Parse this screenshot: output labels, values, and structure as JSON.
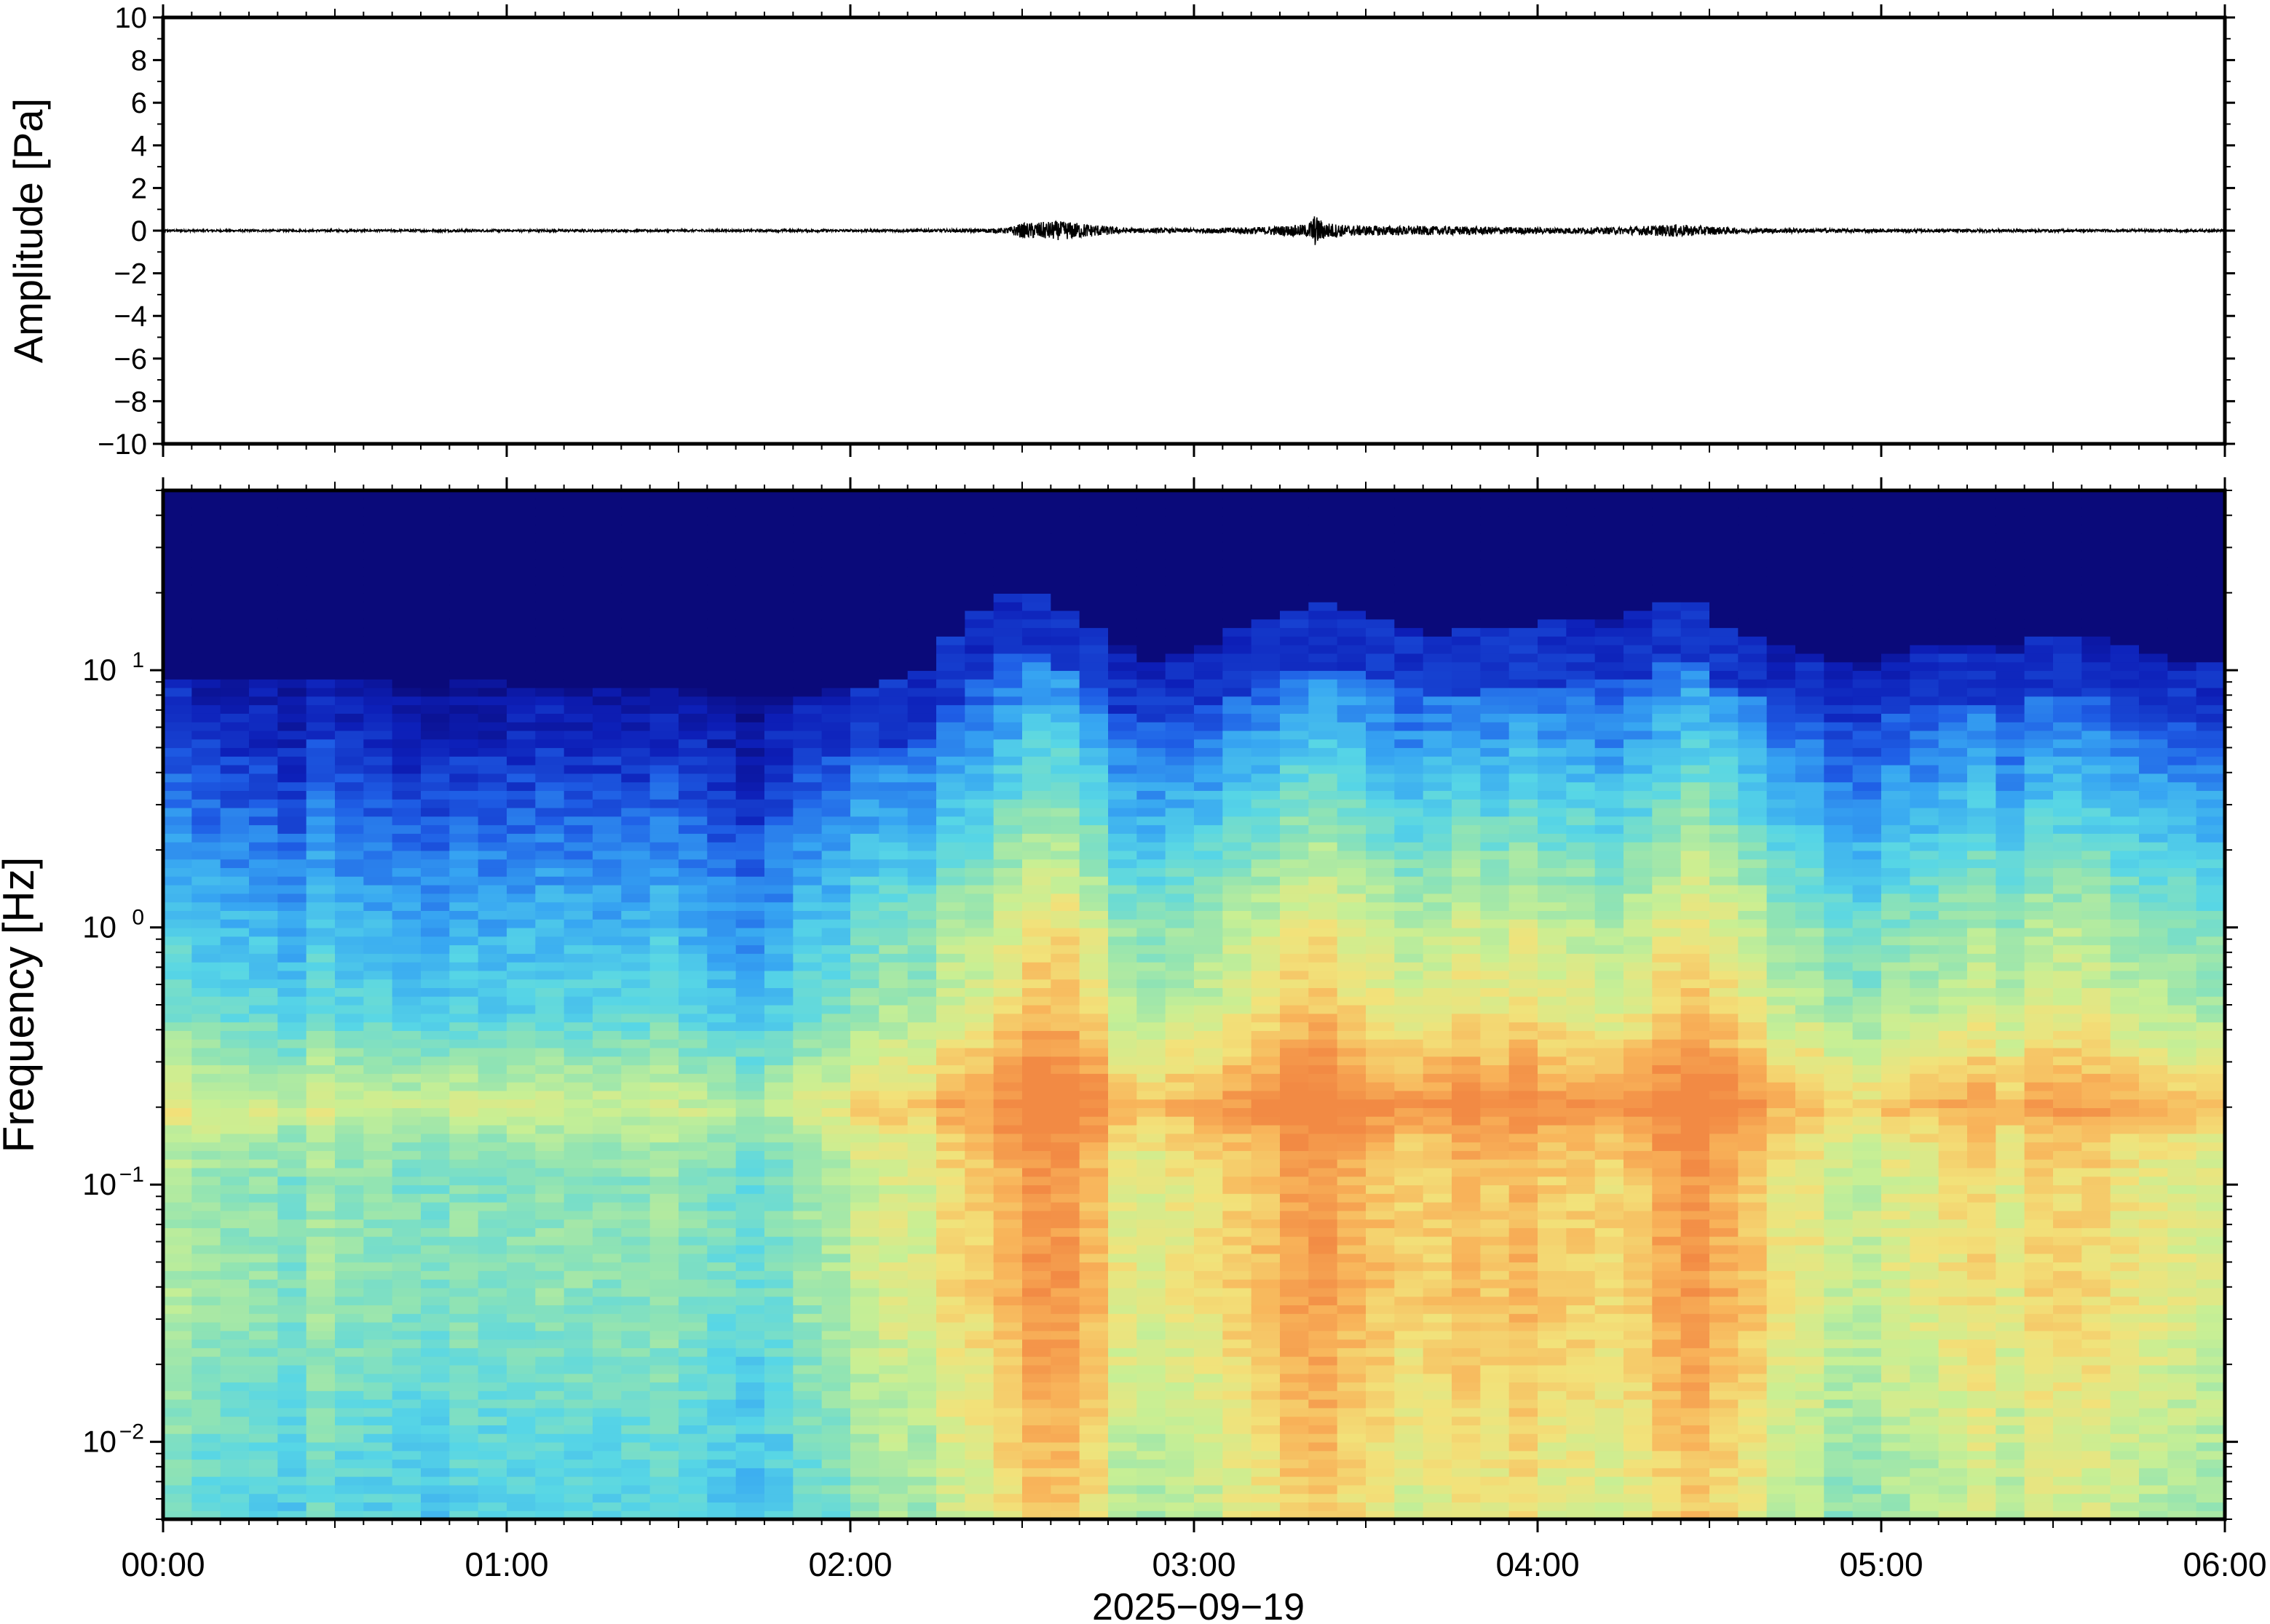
{
  "chart_data": [
    {
      "type": "line",
      "panel": "waveform",
      "ylabel": "Amplitude [Pa]",
      "ylim": [
        -10,
        10
      ],
      "y_ticks": [
        10,
        8,
        6,
        4,
        2,
        0,
        -2,
        -4,
        -6,
        -8,
        -10
      ],
      "y_tick_labels": [
        "10",
        "8",
        "6",
        "4",
        "2",
        "0",
        "−2",
        "−4",
        "−6",
        "−8",
        "−10"
      ],
      "x_hours_range": [
        0,
        6
      ],
      "series": [
        {
          "description_values": "pressure trace near zero; amplitude envelope in Pa at hours",
          "envelope_hours": [
            0,
            0.5,
            1.0,
            1.5,
            2.0,
            2.3,
            2.45,
            2.5,
            2.55,
            2.6,
            2.65,
            2.7,
            2.8,
            3.0,
            3.2,
            3.33,
            3.35,
            3.38,
            3.45,
            3.6,
            3.8,
            4.0,
            4.2,
            4.35,
            4.4,
            4.45,
            4.6,
            4.8,
            5.0,
            5.3,
            5.6,
            6.0
          ],
          "envelope_pa": [
            0.05,
            0.05,
            0.06,
            0.05,
            0.06,
            0.07,
            0.12,
            0.35,
            0.4,
            0.45,
            0.4,
            0.3,
            0.12,
            0.1,
            0.18,
            0.3,
            0.75,
            0.4,
            0.25,
            0.22,
            0.2,
            0.15,
            0.15,
            0.25,
            0.3,
            0.25,
            0.12,
            0.1,
            0.08,
            0.07,
            0.06,
            0.05
          ]
        }
      ]
    },
    {
      "type": "heatmap",
      "panel": "spectrogram",
      "ylabel": "Frequency [Hz]",
      "y_scale": "log",
      "ylim": [
        0.005,
        50
      ],
      "y_tick_values": [
        0.01,
        0.1,
        1,
        10
      ],
      "y_tick_labels": [
        {
          "base": "10",
          "exp": "−2"
        },
        {
          "base": "10",
          "exp": "−1"
        },
        {
          "base": "10",
          "exp": "0"
        },
        {
          "base": "10",
          "exp": "1"
        }
      ],
      "colormap": "jet",
      "colormap_stops": [
        "#0a0a7a",
        "#0d1fb8",
        "#1f5fe6",
        "#37a6f2",
        "#57d6e6",
        "#8fe3b4",
        "#c8ef94",
        "#f2e27a",
        "#f8b45a",
        "#f28a44"
      ],
      "level_range": [
        0,
        1
      ],
      "xlabel": "2025−09−19",
      "x_ticks_hours": [
        0,
        1,
        2,
        3,
        4,
        5,
        6
      ],
      "x_tick_labels": [
        "00:00",
        "01:00",
        "02:00",
        "03:00",
        "04:00",
        "05:00",
        "06:00"
      ],
      "noise_floor": {
        "description": "relative energy 0-1 (colour level) by frequency, background",
        "freq_hz": [
          0.006,
          0.01,
          0.02,
          0.04,
          0.07,
          0.1,
          0.15,
          0.2,
          0.3,
          0.5,
          1,
          2,
          4,
          8,
          12,
          20
        ],
        "level": [
          0.45,
          0.48,
          0.52,
          0.56,
          0.56,
          0.55,
          0.6,
          0.7,
          0.58,
          0.45,
          0.38,
          0.28,
          0.18,
          0.08,
          0.02,
          0.0
        ]
      },
      "activity_bursts": {
        "description": "time (hours) of elevated energy with peak relative boost",
        "hours": [
          0.0,
          0.5,
          1.0,
          1.5,
          1.75,
          2.0,
          2.2,
          2.45,
          2.52,
          2.6,
          2.7,
          2.85,
          3.0,
          3.15,
          3.33,
          3.4,
          3.55,
          3.7,
          3.9,
          4.1,
          4.3,
          4.42,
          4.55,
          4.8,
          4.95,
          5.1,
          5.3,
          5.5,
          5.65,
          5.8,
          6.0
        ],
        "boost": [
          0.02,
          0.0,
          0.0,
          0.02,
          -0.05,
          0.06,
          0.12,
          0.3,
          0.36,
          0.32,
          0.28,
          0.12,
          0.2,
          0.26,
          0.34,
          0.32,
          0.26,
          0.22,
          0.28,
          0.22,
          0.26,
          0.34,
          0.28,
          0.16,
          0.1,
          0.14,
          0.18,
          0.2,
          0.24,
          0.16,
          0.12
        ],
        "top_freq_hz": [
          9,
          9,
          8.5,
          8,
          7.5,
          8,
          9,
          19,
          20,
          17,
          14,
          10,
          11,
          14,
          17,
          17,
          15,
          13,
          14,
          15,
          16,
          19,
          14,
          11,
          10,
          12,
          12,
          13,
          13,
          11,
          10
        ]
      }
    }
  ]
}
